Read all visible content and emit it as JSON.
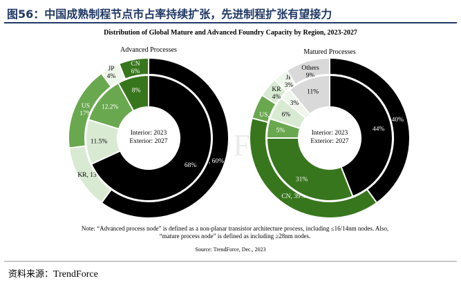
{
  "header": {
    "title": "图56：中国成熟制程节点市占率持续扩张，先进制程扩张有望接力"
  },
  "watermark": "TRENDFORCE",
  "chart_data": [
    {
      "type": "pie",
      "title": "Distribution of Global Mature and Advanced Foundry Capacity by Region, 2023-2027",
      "subtitle": "Advanced Processes",
      "center_labels": [
        "Interior: 2023",
        "Exterior: 2027"
      ],
      "interior_2023": [
        {
          "region": "TW",
          "value": 68,
          "label": "68%",
          "color": "#000000"
        },
        {
          "region": "KR",
          "value": 11.5,
          "label": "11.5%",
          "color": "#d9ead3"
        },
        {
          "region": "US",
          "value": 12.2,
          "label": "12.2%",
          "color": "#6aa84f"
        },
        {
          "region": "CN",
          "value": 8,
          "label": "8%",
          "color": "#38761d"
        }
      ],
      "exterior_2027": [
        {
          "region": "TW",
          "value": 60,
          "label": "TW, 60%",
          "color": "#000000"
        },
        {
          "region": "KR",
          "value": 13,
          "label": "KR, 13%",
          "color": "#d9ead3"
        },
        {
          "region": "US",
          "value": 17,
          "label": "US\n17%",
          "color": "#6aa84f"
        },
        {
          "region": "JP",
          "value": 4,
          "label": "JP\n4%",
          "color": "#eef5ea"
        },
        {
          "region": "CN",
          "value": 6,
          "label": "CN\n6%",
          "color": "#38761d"
        }
      ]
    },
    {
      "type": "pie",
      "subtitle": "Matured Processes",
      "center_labels": [
        "Interior: 2023",
        "Exterior: 2027"
      ],
      "interior_2023": [
        {
          "region": "TW",
          "value": 44,
          "label": "44%",
          "color": "#000000"
        },
        {
          "region": "CN",
          "value": 31,
          "label": "31%",
          "color": "#38761d"
        },
        {
          "region": "US",
          "value": 5,
          "label": "5%",
          "color": "#6aa84f"
        },
        {
          "region": "KR",
          "value": 6,
          "label": "6%",
          "color": "#d9ead3"
        },
        {
          "region": "JP",
          "value": 3,
          "label": "3%",
          "color": "#eef5ea"
        },
        {
          "region": "Others",
          "value": 11,
          "label": "11%",
          "color": "#d9d9d9"
        }
      ],
      "exterior_2027": [
        {
          "region": "TW",
          "value": 40,
          "label": "TW, 40%",
          "color": "#000000"
        },
        {
          "region": "CN",
          "value": 39,
          "label": "CN, 39%",
          "color": "#38761d"
        },
        {
          "region": "US",
          "value": 5,
          "label": "US, 5%",
          "color": "#6aa84f"
        },
        {
          "region": "KR",
          "value": 4,
          "label": "KR\n4%",
          "color": "#d9ead3"
        },
        {
          "region": "JP",
          "value": 3,
          "label": "JP\n3%",
          "color": "#eef5ea"
        },
        {
          "region": "Others",
          "value": 9,
          "label": "Others\n9%",
          "color": "#d9d9d9"
        }
      ]
    }
  ],
  "note": "Note: “Advanced process node” is defined as a non-planar transistor architecture process, including ≤16/14nm nodes. Also, “mature process node” is defined as including ≥28nm nodes.",
  "source": "Source: TrendForce, Dec., 2023",
  "footer": {
    "label": "资料来源：",
    "source_name": "TrendForce"
  }
}
